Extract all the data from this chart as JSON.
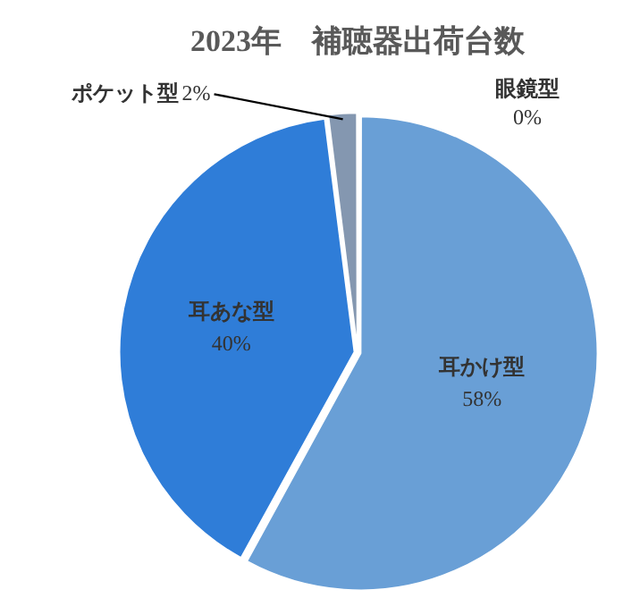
{
  "chart_data": {
    "type": "pie",
    "title": "2023年　補聴器出荷台数",
    "categories": [
      "耳かけ型",
      "耳あな型",
      "ポケット型",
      "眼鏡型"
    ],
    "values": [
      58,
      40,
      2,
      0
    ],
    "value_labels": [
      "58%",
      "40%",
      "2%",
      "0%"
    ],
    "colors": [
      "#699fd6",
      "#2f7dd8",
      "#8497b0",
      "#a5a5a5"
    ],
    "legend": false
  }
}
